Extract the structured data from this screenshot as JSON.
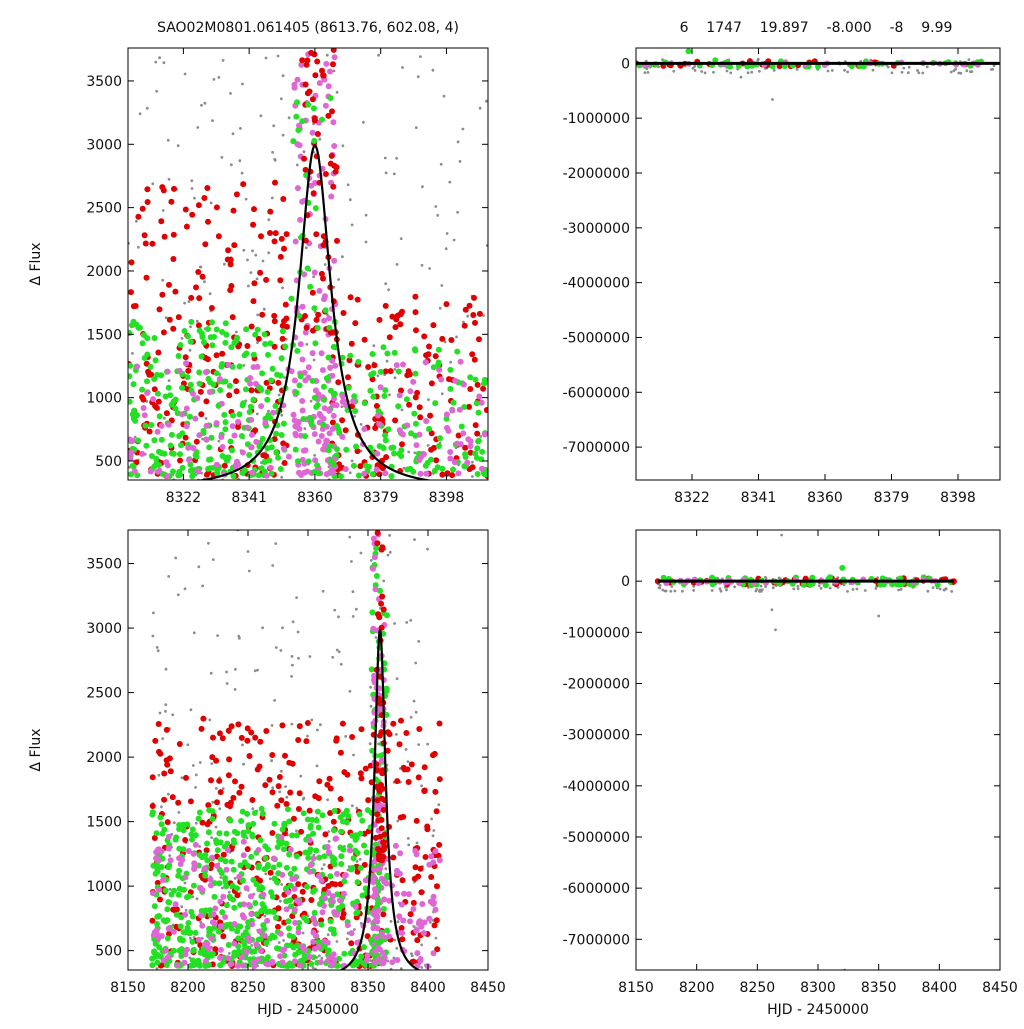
{
  "header": {
    "left_title": "SAO02M0801.061405 (8613.76, 602.08,    4)",
    "right_title": "6    1747    19.897    -8.000    -8    9.99"
  },
  "colors": {
    "grey_points": "#8c8c8c",
    "green_points": "#22e022",
    "magenta_points": "#e066d6",
    "red_points": "#e00000",
    "model_curve": "#000000"
  },
  "chart_data": [
    {
      "id": "top-left",
      "type": "scatter",
      "xlim": [
        8306,
        8410
      ],
      "ylim": [
        350,
        3760
      ],
      "xticks": [
        8322,
        8341,
        8360,
        8379,
        8398
      ],
      "yticks": [
        500,
        1000,
        1500,
        2000,
        2500,
        3000,
        3500
      ],
      "xlabel": "",
      "ylabel": "Δ Flux",
      "model": {
        "kind": "lorentzian",
        "t0": 8360,
        "peak": 2990,
        "base": 270,
        "width": 5.6
      },
      "clusters": [
        {
          "series": "grey",
          "count": 260,
          "x": [
            8306,
            8410
          ],
          "y": [
            350,
            3760
          ]
        },
        {
          "series": "red",
          "count": 210,
          "x": [
            8306,
            8352
          ],
          "y": [
            380,
            2700
          ]
        },
        {
          "series": "red",
          "count": 140,
          "x": [
            8364,
            8410
          ],
          "y": [
            380,
            1800
          ]
        },
        {
          "series": "green",
          "count": 260,
          "x": [
            8306,
            8352
          ],
          "y": [
            380,
            1600
          ]
        },
        {
          "series": "green",
          "count": 130,
          "x": [
            8364,
            8410
          ],
          "y": [
            380,
            1400
          ]
        },
        {
          "series": "magenta",
          "count": 150,
          "x": [
            8306,
            8410
          ],
          "y": [
            380,
            1300
          ]
        },
        {
          "series": "magenta",
          "count": 140,
          "x": [
            8354,
            8366
          ],
          "y": [
            400,
            3760
          ]
        },
        {
          "series": "red",
          "count": 60,
          "x": [
            8356,
            8367
          ],
          "y": [
            1500,
            3760
          ]
        },
        {
          "series": "green",
          "count": 60,
          "x": [
            8353,
            8367
          ],
          "y": [
            400,
            3400
          ]
        }
      ]
    },
    {
      "id": "top-right",
      "type": "scatter",
      "xlim": [
        8306,
        8410
      ],
      "ylim": [
        -7600000,
        280000
      ],
      "xticks": [
        8322,
        8341,
        8360,
        8379,
        8398
      ],
      "yticks": [
        0,
        -1000000,
        -2000000,
        -3000000,
        -4000000,
        -5000000,
        -6000000,
        -7000000
      ],
      "xlabel": "",
      "ylabel": "",
      "model": {
        "kind": "flat",
        "value": 0
      },
      "clusters": [
        {
          "series": "grey",
          "count": 90,
          "x": [
            8306,
            8410
          ],
          "y": [
            -180000,
            80000
          ]
        },
        {
          "series": "red",
          "count": 30,
          "x": [
            8306,
            8410
          ],
          "y": [
            -50000,
            50000
          ]
        },
        {
          "series": "green",
          "count": 40,
          "x": [
            8306,
            8410
          ],
          "y": [
            -60000,
            60000
          ]
        },
        {
          "series": "magenta",
          "count": 20,
          "x": [
            8306,
            8410
          ],
          "y": [
            -30000,
            30000
          ]
        }
      ],
      "outliers": [
        {
          "series": "grey",
          "x": 8345,
          "y": -660000
        },
        {
          "series": "grey",
          "x": 8336,
          "y": -250000
        },
        {
          "series": "green",
          "x": 8321,
          "y": 220000
        }
      ]
    },
    {
      "id": "bottom-left",
      "type": "scatter",
      "xlim": [
        8150,
        8450
      ],
      "ylim": [
        350,
        3760
      ],
      "xticks": [
        8150,
        8200,
        8250,
        8300,
        8350,
        8400,
        8450
      ],
      "yticks": [
        500,
        1000,
        1500,
        2000,
        2500,
        3000,
        3500
      ],
      "xlabel": "HJD - 2450000",
      "ylabel": "Δ Flux",
      "model": {
        "kind": "lorentzian",
        "t0": 8360,
        "peak": 2990,
        "base": 270,
        "width": 5.6
      },
      "clusters": [
        {
          "series": "grey",
          "count": 320,
          "x": [
            8170,
            8410
          ],
          "y": [
            350,
            3760
          ]
        },
        {
          "series": "red",
          "count": 380,
          "x": [
            8170,
            8410
          ],
          "y": [
            380,
            2300
          ]
        },
        {
          "series": "green",
          "count": 560,
          "x": [
            8170,
            8360
          ],
          "y": [
            380,
            1600
          ]
        },
        {
          "series": "magenta",
          "count": 240,
          "x": [
            8170,
            8410
          ],
          "y": [
            380,
            1400
          ]
        },
        {
          "series": "green",
          "count": 80,
          "x": [
            8353,
            8366
          ],
          "y": [
            400,
            3700
          ]
        },
        {
          "series": "magenta",
          "count": 90,
          "x": [
            8354,
            8364
          ],
          "y": [
            400,
            3760
          ]
        },
        {
          "series": "red",
          "count": 50,
          "x": [
            8356,
            8364
          ],
          "y": [
            1200,
            3760
          ]
        }
      ]
    },
    {
      "id": "bottom-right",
      "type": "scatter",
      "xlim": [
        8150,
        8450
      ],
      "ylim": [
        -7600000,
        1000000
      ],
      "xticks": [
        8150,
        8200,
        8250,
        8300,
        8350,
        8400,
        8450
      ],
      "yticks": [
        0,
        -1000000,
        -2000000,
        -3000000,
        -4000000,
        -5000000,
        -6000000,
        -7000000
      ],
      "xlabel": "HJD - 2450000",
      "ylabel": "",
      "model": {
        "kind": "flat",
        "value": 0,
        "x_range": [
          8168,
          8412
        ]
      },
      "clusters": [
        {
          "series": "grey",
          "count": 110,
          "x": [
            8168,
            8412
          ],
          "y": [
            -200000,
            90000
          ]
        },
        {
          "series": "red",
          "count": 40,
          "x": [
            8168,
            8412
          ],
          "y": [
            -60000,
            60000
          ]
        },
        {
          "series": "green",
          "count": 60,
          "x": [
            8168,
            8412
          ],
          "y": [
            -80000,
            80000
          ]
        },
        {
          "series": "magenta",
          "count": 30,
          "x": [
            8168,
            8412
          ],
          "y": [
            -40000,
            40000
          ]
        }
      ],
      "outliers": [
        {
          "series": "grey",
          "x": 8265,
          "y": -950000
        },
        {
          "series": "grey",
          "x": 8262,
          "y": -560000
        },
        {
          "series": "grey",
          "x": 8350,
          "y": -680000
        },
        {
          "series": "grey",
          "x": 8270,
          "y": 900000
        },
        {
          "series": "grey",
          "x": 8322,
          "y": -7600000
        },
        {
          "series": "green",
          "x": 8320,
          "y": 260000
        },
        {
          "series": "red",
          "x": 8168,
          "y": 0
        },
        {
          "series": "red",
          "x": 8412,
          "y": 0
        }
      ]
    }
  ]
}
